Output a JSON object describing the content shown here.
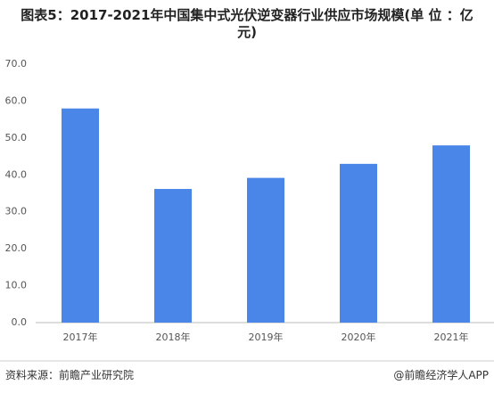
{
  "chart_data": {
    "type": "bar",
    "title": "图表5：2017-2021年中国集中式光伏逆变器行业供应市场规模(单 位 ：亿元)",
    "categories": [
      "2017年",
      "2018年",
      "2019年",
      "2020年",
      "2021年"
    ],
    "values": [
      58,
      36.2,
      39.2,
      43,
      48
    ],
    "color": "#4a86e8",
    "ylim": [
      0,
      70
    ],
    "yticks": [
      {
        "value": 0,
        "label": "0.0"
      },
      {
        "value": 10,
        "label": "10.0"
      },
      {
        "value": 20,
        "label": "20.0"
      },
      {
        "value": 30,
        "label": "30.0"
      },
      {
        "value": 40,
        "label": "40.0"
      },
      {
        "value": 50,
        "label": "50.0"
      },
      {
        "value": 60,
        "label": "60.0"
      },
      {
        "value": 70,
        "label": "70.0"
      }
    ],
    "grid": false,
    "source": "资料来源：前瞻产业研究院",
    "credit": "@前瞻经济学人APP"
  }
}
